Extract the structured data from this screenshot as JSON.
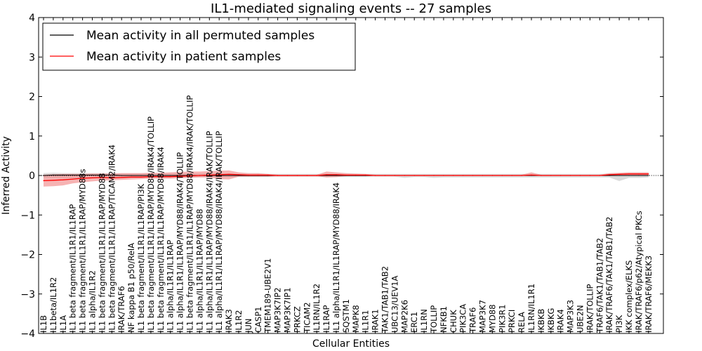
{
  "chart_data": {
    "type": "line",
    "title": "IL1-mediated signaling events -- 27 samples",
    "xlabel": "Cellular Entities",
    "ylabel": "Inferred Activity",
    "ylim": [
      -4,
      4
    ],
    "yticks": [
      4,
      3,
      2,
      1,
      0,
      -1,
      -2,
      -3,
      -4
    ],
    "ytick_labels": [
      "4",
      "3",
      "2",
      "1",
      "0",
      "−1",
      "−2",
      "−3",
      "−4"
    ],
    "legend_position": "top-left",
    "colors": {
      "permuted": "#000000",
      "patient": "#ff0000",
      "patient_band": "#f08080",
      "permuted_band": "#bbbbbb"
    },
    "categories": [
      "IL1B",
      "IL1beta/IL1R2",
      "IL1A",
      "IL1 beta fragment/IL1R1/IL1RAP",
      "IL1 beta fragment/IL1R1/IL1RAP/MYD88s",
      "IL1 alpha/IL1R2",
      "IL1 beta fragment/IL1R1/IL1RAP/MYD88",
      "IL1 beta fragment/IL1R1/IL1RAP/TICAM2/IRAK4",
      "IRAK/TRAF6",
      "NF kappa B1 p50/RelA",
      "IL1 beta fragment/IL1R1/IL1RAP/PI3K",
      "IL1 beta fragment/IL1R1/IL1RAP/MYD88/IRAK4/TOLLIP",
      "IL1 beta fragment/IL1R1/IL1RAP/MYD88/IRAK4",
      "IL1 alpha/IL1R1/IL1RAP",
      "IL1 alpha/IL1R1/IL1RAP/MYD88/IRAK4/TOLLIP",
      "IL1 beta fragment/IL1R1/IL1RAP/MYD88/IRAK4/IRAK/TOLLIP",
      "IL1 alpha/IL1R1/IL1RAP/MYD88",
      "IL1 alpha/IL1R1/IL1RAP/MYD88/IRAK4/IRAK/TOLLIP",
      "IL1 alpha/IL1R1/IL1RAP/MYD88/IRAK4/IRAK/TOLLIP",
      "IRAK3",
      "IL1R2",
      "JUN",
      "CASP1",
      "TMEM189-UBE2V1",
      "MAP3K7IP2",
      "MAP3K7IP1",
      "PRKCZ",
      "TICAM2",
      "IL1RN/IL1R2",
      "IL1RAP",
      "IL1 alpha/IL1R1/IL1RAP/MYD88/IRAK4",
      "SQSTM1",
      "MAPK8",
      "IL1R1",
      "IRAK1",
      "TAK1/TAB1/TAB2",
      "UBC13/UEV1A",
      "MAP2K6",
      "ERC1",
      "IL1RN",
      "TOLLIP",
      "NFKB1",
      "CHUK",
      "PIK3CA",
      "TRAF6",
      "MAP3K7",
      "MYD88",
      "PIK3R1",
      "PRKCI",
      "RELA",
      "IL1RN/IL1R1",
      "IKBKB",
      "IKBKG",
      "IRAK4",
      "MAP3K3",
      "UBE2N",
      "IRAK/TOLLIP",
      "TRAF6/TAK1/TAB1/TAB2",
      "IRAK/TRAF6/TAK1/TAB1/TAB2",
      "PI3K",
      "IKK complex/ELKS",
      "IRAK/TRAF6/p62/Atypical PKCs",
      "IRAK/TRAF6/MEKK3"
    ],
    "series": [
      {
        "name": "Mean activity in all permuted samples",
        "color": "#000000",
        "values": [
          0,
          0.01,
          0.01,
          0.01,
          0.01,
          0.01,
          0.01,
          0.01,
          0,
          0,
          0,
          0,
          0,
          0,
          0,
          0,
          0,
          0,
          0,
          0,
          0,
          0,
          0,
          0,
          0,
          0,
          0,
          0,
          0,
          0,
          0,
          0,
          0,
          0,
          0,
          0,
          0,
          0,
          0,
          0,
          0,
          0,
          0,
          0,
          0,
          0,
          0,
          0,
          0,
          0,
          0,
          0,
          0,
          0,
          0,
          0,
          0,
          0,
          0,
          0,
          0,
          0,
          0
        ],
        "band_low": [
          -0.06,
          -0.06,
          -0.06,
          -0.06,
          -0.05,
          -0.05,
          -0.05,
          -0.05,
          -0.04,
          -0.04,
          -0.04,
          -0.04,
          -0.04,
          -0.04,
          -0.04,
          -0.04,
          -0.04,
          -0.04,
          -0.04,
          -0.04,
          -0.03,
          -0.03,
          -0.03,
          -0.03,
          -0.03,
          -0.03,
          -0.03,
          -0.03,
          -0.03,
          -0.04,
          -0.04,
          -0.03,
          -0.03,
          -0.03,
          -0.03,
          -0.03,
          -0.03,
          -0.06,
          -0.04,
          -0.04,
          -0.06,
          -0.05,
          -0.05,
          -0.05,
          -0.05,
          -0.05,
          -0.05,
          -0.05,
          -0.05,
          -0.05,
          -0.05,
          -0.05,
          -0.05,
          -0.05,
          -0.05,
          -0.05,
          -0.05,
          -0.05,
          -0.05,
          -0.14,
          -0.06,
          -0.06,
          -0.05
        ],
        "band_high": [
          0.06,
          0.07,
          0.06,
          0.06,
          0.06,
          0.06,
          0.06,
          0.06,
          0.05,
          0.05,
          0.05,
          0.05,
          0.05,
          0.05,
          0.05,
          0.05,
          0.05,
          0.05,
          0.05,
          0.05,
          0.04,
          0.04,
          0.04,
          0.04,
          0.04,
          0.04,
          0.04,
          0.04,
          0.04,
          0.04,
          0.04,
          0.04,
          0.04,
          0.04,
          0.04,
          0.04,
          0.04,
          0.04,
          0.04,
          0.04,
          0.04,
          0.04,
          0.04,
          0.04,
          0.04,
          0.04,
          0.04,
          0.04,
          0.04,
          0.04,
          0.04,
          0.04,
          0.04,
          0.04,
          0.04,
          0.04,
          0.04,
          0.04,
          0.05,
          0.05,
          0.06,
          0.06,
          0.06
        ]
      },
      {
        "name": "Mean activity in patient samples",
        "color": "#ff0000",
        "values": [
          -0.13,
          -0.12,
          -0.11,
          -0.09,
          -0.07,
          -0.06,
          -0.05,
          -0.06,
          -0.05,
          -0.04,
          -0.04,
          -0.03,
          -0.03,
          -0.03,
          -0.02,
          -0.01,
          0,
          0.01,
          0.02,
          0.03,
          0.02,
          0.01,
          0.01,
          0.01,
          0,
          0,
          0,
          0,
          0,
          0.02,
          0.02,
          0.01,
          0.01,
          0.01,
          0,
          0,
          0,
          0,
          0,
          0,
          0,
          0,
          0,
          0,
          0,
          0,
          0,
          0,
          0,
          0,
          0.01,
          0,
          0,
          0,
          0,
          0,
          0,
          0,
          0.02,
          0.03,
          0.04,
          0.04,
          0.04
        ],
        "band_low": [
          -0.28,
          -0.27,
          -0.25,
          -0.2,
          -0.17,
          -0.15,
          -0.13,
          -0.12,
          -0.11,
          -0.1,
          -0.09,
          -0.08,
          -0.08,
          -0.08,
          -0.07,
          -0.06,
          -0.05,
          -0.05,
          -0.09,
          -0.1,
          -0.03,
          -0.03,
          -0.03,
          -0.03,
          -0.02,
          -0.02,
          -0.02,
          -0.02,
          -0.02,
          -0.05,
          -0.04,
          -0.02,
          -0.02,
          -0.02,
          -0.01,
          -0.01,
          -0.01,
          -0.01,
          -0.01,
          -0.01,
          -0.01,
          -0.01,
          -0.01,
          -0.01,
          -0.01,
          -0.01,
          -0.01,
          -0.01,
          -0.01,
          -0.01,
          -0.01,
          -0.01,
          -0.01,
          -0.01,
          -0.01,
          -0.01,
          -0.01,
          -0.01,
          -0.01,
          0,
          0.01,
          0.01,
          0.01
        ],
        "band_high": [
          0.02,
          0.03,
          0.04,
          0.04,
          0.04,
          0.05,
          0.05,
          0.05,
          0.06,
          0.06,
          0.06,
          0.07,
          0.07,
          0.08,
          0.09,
          0.1,
          0.1,
          0.11,
          0.12,
          0.13,
          0.08,
          0.06,
          0.06,
          0.04,
          0.02,
          0.02,
          0.02,
          0.02,
          0.02,
          0.1,
          0.08,
          0.06,
          0.05,
          0.04,
          0.02,
          0.02,
          0.02,
          0.02,
          0.02,
          0.02,
          0.02,
          0.02,
          0.02,
          0.02,
          0.02,
          0.02,
          0.02,
          0.02,
          0.02,
          0.02,
          0.08,
          0.02,
          0.02,
          0.02,
          0.02,
          0.02,
          0.02,
          0.02,
          0.06,
          0.07,
          0.08,
          0.08,
          0.08
        ]
      }
    ]
  }
}
